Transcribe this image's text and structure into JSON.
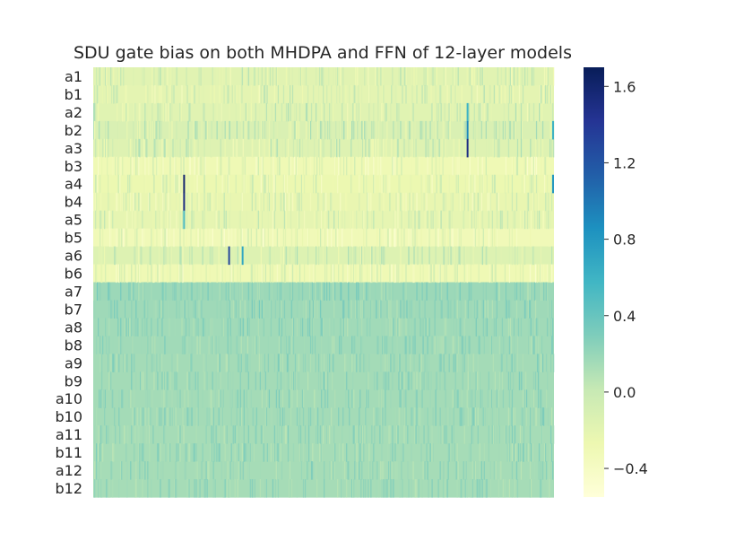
{
  "chart_data": {
    "type": "heatmap",
    "title": "SDU gate bias on both MHDPA and FFN of 12-layer models",
    "xlabel": "",
    "ylabel": "",
    "row_labels": [
      "a1",
      "b1",
      "a2",
      "b2",
      "a3",
      "b3",
      "a4",
      "b4",
      "a5",
      "b5",
      "a6",
      "b6",
      "a7",
      "b7",
      "a8",
      "b8",
      "a9",
      "b9",
      "a10",
      "b10",
      "a11",
      "b11",
      "a12",
      "b12"
    ],
    "column_count": 512,
    "colormap": "YlGnBu",
    "color_range": [
      -0.55,
      1.7
    ],
    "colorbar_ticks": [
      "1.6",
      "1.2",
      "0.8",
      "0.4",
      "0.0",
      "−0.4"
    ],
    "colorbar_tick_values": [
      1.6,
      1.2,
      0.8,
      0.4,
      0.0,
      -0.4
    ],
    "row_mean_values": [
      -0.18,
      -0.2,
      -0.17,
      -0.12,
      -0.16,
      -0.3,
      -0.26,
      -0.24,
      -0.22,
      -0.32,
      -0.15,
      -0.3,
      0.18,
      0.17,
      0.16,
      0.16,
      0.15,
      0.15,
      0.15,
      0.15,
      0.14,
      0.14,
      0.14,
      0.14
    ],
    "notable_cells": [
      {
        "row": "a2",
        "column_index": 415,
        "value": 0.6
      },
      {
        "row": "b2",
        "column_index": 415,
        "value": 0.9
      },
      {
        "row": "a3",
        "column_index": 415,
        "value": 1.5
      },
      {
        "row": "a4",
        "column_index": 100,
        "value": 1.6
      },
      {
        "row": "b4",
        "column_index": 100,
        "value": 1.5
      },
      {
        "row": "a5",
        "column_index": 100,
        "value": 0.5
      },
      {
        "row": "a6",
        "column_index": 150,
        "value": 1.3
      },
      {
        "row": "a6",
        "column_index": 165,
        "value": 0.7
      },
      {
        "row": "b2",
        "column_index": 510,
        "value": 0.6
      },
      {
        "row": "a4",
        "column_index": 510,
        "value": 0.8
      }
    ]
  }
}
